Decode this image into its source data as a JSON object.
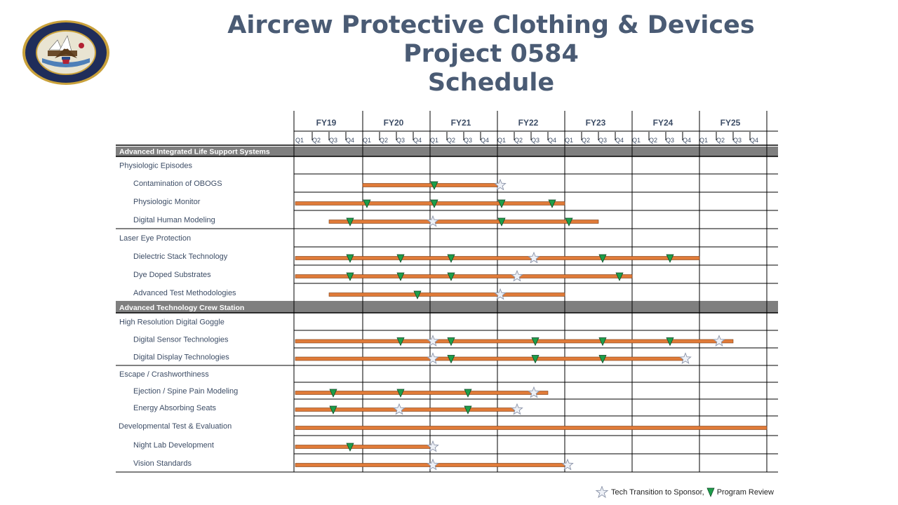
{
  "title": {
    "line1": "Aircrew Protective Clothing & Devices",
    "line2": "Project 0584",
    "line3": "Schedule"
  },
  "seal": {
    "text_top": "DEPARTMENT OF THE NAVY",
    "text_bottom": "UNITED STATES OF AMERICA"
  },
  "legend": {
    "star_label": "Tech Transition to Sponsor,",
    "triangle_label": "Program Review"
  },
  "colors": {
    "bar": "#e07b39",
    "bar_outline": "#7a3a12",
    "milestone_triangle": "#1e9e4a",
    "star_fill": "#eef1f7",
    "section_header": "#7f7f7f",
    "title": "#4a5b74"
  },
  "chart_data": {
    "type": "gantt",
    "time_unit": "fiscal quarter",
    "fiscal_years": [
      "FY19",
      "FY20",
      "FY21",
      "FY22",
      "FY23",
      "FY24",
      "FY25"
    ],
    "quarter_labels": [
      "Q1",
      "Q2",
      "Q3",
      "Q4"
    ],
    "rows": [
      {
        "label": "Advanced Integrated Life Support Systems",
        "kind": "section"
      },
      {
        "label": "Physiologic  Episodes",
        "kind": "group"
      },
      {
        "label": "Contamination  of OBOGS",
        "kind": "task",
        "start": "FY20 Q1",
        "end": "FY21 Q4",
        "reviews": [
          "FY21 Q1"
        ],
        "transitions": [
          "FY22 Q1"
        ]
      },
      {
        "label": "Physiologic  Monitor",
        "kind": "task",
        "start": "FY19 Q1",
        "end": "FY22 Q4",
        "reviews": [
          "FY20 Q1",
          "FY21 Q1",
          "FY22 Q1",
          "FY22 Q4"
        ],
        "transitions": []
      },
      {
        "label": "Digital  Human Modeling",
        "kind": "task",
        "start": "FY19 Q3",
        "end": "FY23 Q2",
        "reviews": [
          "FY19 Q4",
          "FY22 Q1",
          "FY23 Q1"
        ],
        "transitions": [
          "FY21 Q1"
        ]
      },
      {
        "label": "Laser Eye Protection",
        "kind": "group"
      },
      {
        "label": "Dielectric Stack Technology",
        "kind": "task",
        "start": "FY19 Q1",
        "end": "FY24 Q4",
        "reviews": [
          "FY19 Q4",
          "FY20 Q3",
          "FY21 Q2",
          "FY23 Q3",
          "FY24 Q3"
        ],
        "transitions": [
          "FY22 Q3"
        ]
      },
      {
        "label": "Dye Doped Substrates",
        "kind": "task",
        "start": "FY19 Q1",
        "end": "FY23 Q4",
        "reviews": [
          "FY19 Q4",
          "FY20 Q3",
          "FY21 Q2",
          "FY23 Q4"
        ],
        "transitions": [
          "FY22 Q2"
        ]
      },
      {
        "label": "Advanced Test Methodologies",
        "kind": "task",
        "start": "FY19 Q3",
        "end": "FY22 Q4",
        "reviews": [
          "FY20 Q4"
        ],
        "transitions": [
          "FY22 Q1"
        ]
      },
      {
        "label": "Advanced Technology  Crew Station",
        "kind": "section"
      },
      {
        "label": "High Resolution  Digital  Goggle",
        "kind": "group"
      },
      {
        "label": "Digital  Sensor Technologies",
        "kind": "task",
        "start": "FY19 Q1",
        "end": "FY25 Q2",
        "reviews": [
          "FY20 Q3",
          "FY21 Q2",
          "FY22 Q3",
          "FY23 Q3",
          "FY24 Q3"
        ],
        "transitions": [
          "FY21 Q1",
          "FY25 Q2"
        ]
      },
      {
        "label": "Digital  Display  Technologies",
        "kind": "task",
        "start": "FY19 Q1",
        "end": "FY24 Q3",
        "reviews": [
          "FY21 Q2",
          "FY22 Q3",
          "FY23 Q3"
        ],
        "transitions": [
          "FY21 Q1",
          "FY24 Q4"
        ]
      },
      {
        "label": "Escape  / Crashworthiness",
        "kind": "group"
      },
      {
        "label": "Ejection  / Spine Pain Modeling",
        "kind": "task",
        "start": "FY19 Q1",
        "end": "FY22 Q3",
        "reviews": [
          "FY19 Q3",
          "FY20 Q3",
          "FY21 Q3"
        ],
        "transitions": [
          "FY22 Q3"
        ]
      },
      {
        "label": "Energy Absorbing Seats",
        "kind": "task",
        "start": "FY19 Q1",
        "end": "FY22 Q1",
        "reviews": [
          "FY19 Q3",
          "FY21 Q3"
        ],
        "transitions": [
          "FY20 Q3",
          "FY22 Q2"
        ]
      },
      {
        "label": "Developmental Test & Evaluation",
        "kind": "task",
        "start": "FY19 Q1",
        "end": "FY25 Q4",
        "reviews": [],
        "transitions": []
      },
      {
        "label": "Night Lab Development",
        "kind": "task",
        "start": "FY19 Q1",
        "end": "FY20 Q4",
        "reviews": [
          "FY19 Q4"
        ],
        "transitions": [
          "FY21 Q1"
        ]
      },
      {
        "label": "Vision Standards",
        "kind": "task",
        "start": "FY19 Q1",
        "end": "FY22 Q4",
        "reviews": [],
        "transitions": [
          "FY21 Q1",
          "FY23 Q1"
        ]
      }
    ]
  }
}
